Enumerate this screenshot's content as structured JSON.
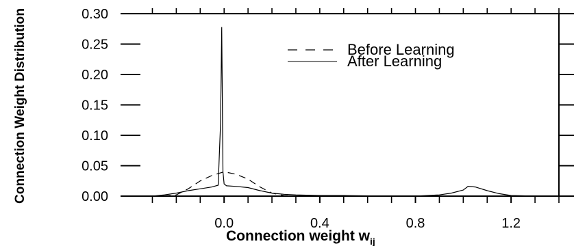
{
  "chart_data": {
    "type": "line",
    "xlabel": "Connection weight w",
    "xlabel_sub": "ij",
    "ylabel": "Connection Weight Distribution",
    "xlim": [
      -0.35,
      1.4
    ],
    "ylim": [
      0.0,
      0.3
    ],
    "x_ticks": [
      0.0,
      0.4,
      0.8,
      1.2
    ],
    "x_tick_labels": [
      "0.0",
      "0.4",
      "0.8",
      "1.2"
    ],
    "y_ticks": [
      0.0,
      0.05,
      0.1,
      0.15,
      0.2,
      0.25,
      0.3
    ],
    "y_tick_labels": [
      "0.00",
      "0.05",
      "0.10",
      "0.15",
      "0.20",
      "0.25",
      "0.30"
    ],
    "grid": false,
    "legend_position": "top-right",
    "series": [
      {
        "name": "Before Learning",
        "style": "dashed",
        "color": "#000000",
        "x": [
          -0.35,
          -0.3,
          -0.25,
          -0.2,
          -0.15,
          -0.1,
          -0.05,
          0.0,
          0.05,
          0.1,
          0.15,
          0.2,
          0.25,
          0.3,
          0.35,
          0.4,
          0.5,
          0.6,
          0.7,
          0.8,
          0.9,
          1.0,
          1.05,
          1.1,
          1.15,
          1.2,
          1.3,
          1.4
        ],
        "y": [
          0.0,
          0.0,
          0.0005,
          0.002,
          0.012,
          0.025,
          0.034,
          0.04,
          0.036,
          0.028,
          0.015,
          0.005,
          0.001,
          0.0,
          0.0,
          0.0,
          0.0,
          0.0,
          0.0,
          0.0,
          0.0,
          0.0,
          0.0,
          0.0,
          0.0,
          0.0,
          0.0,
          0.0
        ]
      },
      {
        "name": "After Learning",
        "style": "solid",
        "color": "#000000",
        "x": [
          -0.35,
          -0.3,
          -0.25,
          -0.2,
          -0.15,
          -0.1,
          -0.05,
          -0.025,
          -0.015,
          -0.01,
          -0.005,
          0.0,
          0.01,
          0.05,
          0.1,
          0.15,
          0.2,
          0.25,
          0.3,
          0.4,
          0.5,
          0.6,
          0.7,
          0.8,
          0.9,
          0.95,
          1.0,
          1.02,
          1.05,
          1.1,
          1.15,
          1.2,
          1.3,
          1.4
        ],
        "y": [
          0.0,
          0.0,
          0.002,
          0.005,
          0.009,
          0.012,
          0.015,
          0.018,
          0.12,
          0.278,
          0.04,
          0.02,
          0.017,
          0.016,
          0.014,
          0.009,
          0.005,
          0.003,
          0.002,
          0.001,
          0.001,
          0.0005,
          0.0,
          0.0,
          0.002,
          0.005,
          0.01,
          0.016,
          0.015,
          0.009,
          0.004,
          0.001,
          0.0,
          0.0
        ]
      }
    ]
  }
}
